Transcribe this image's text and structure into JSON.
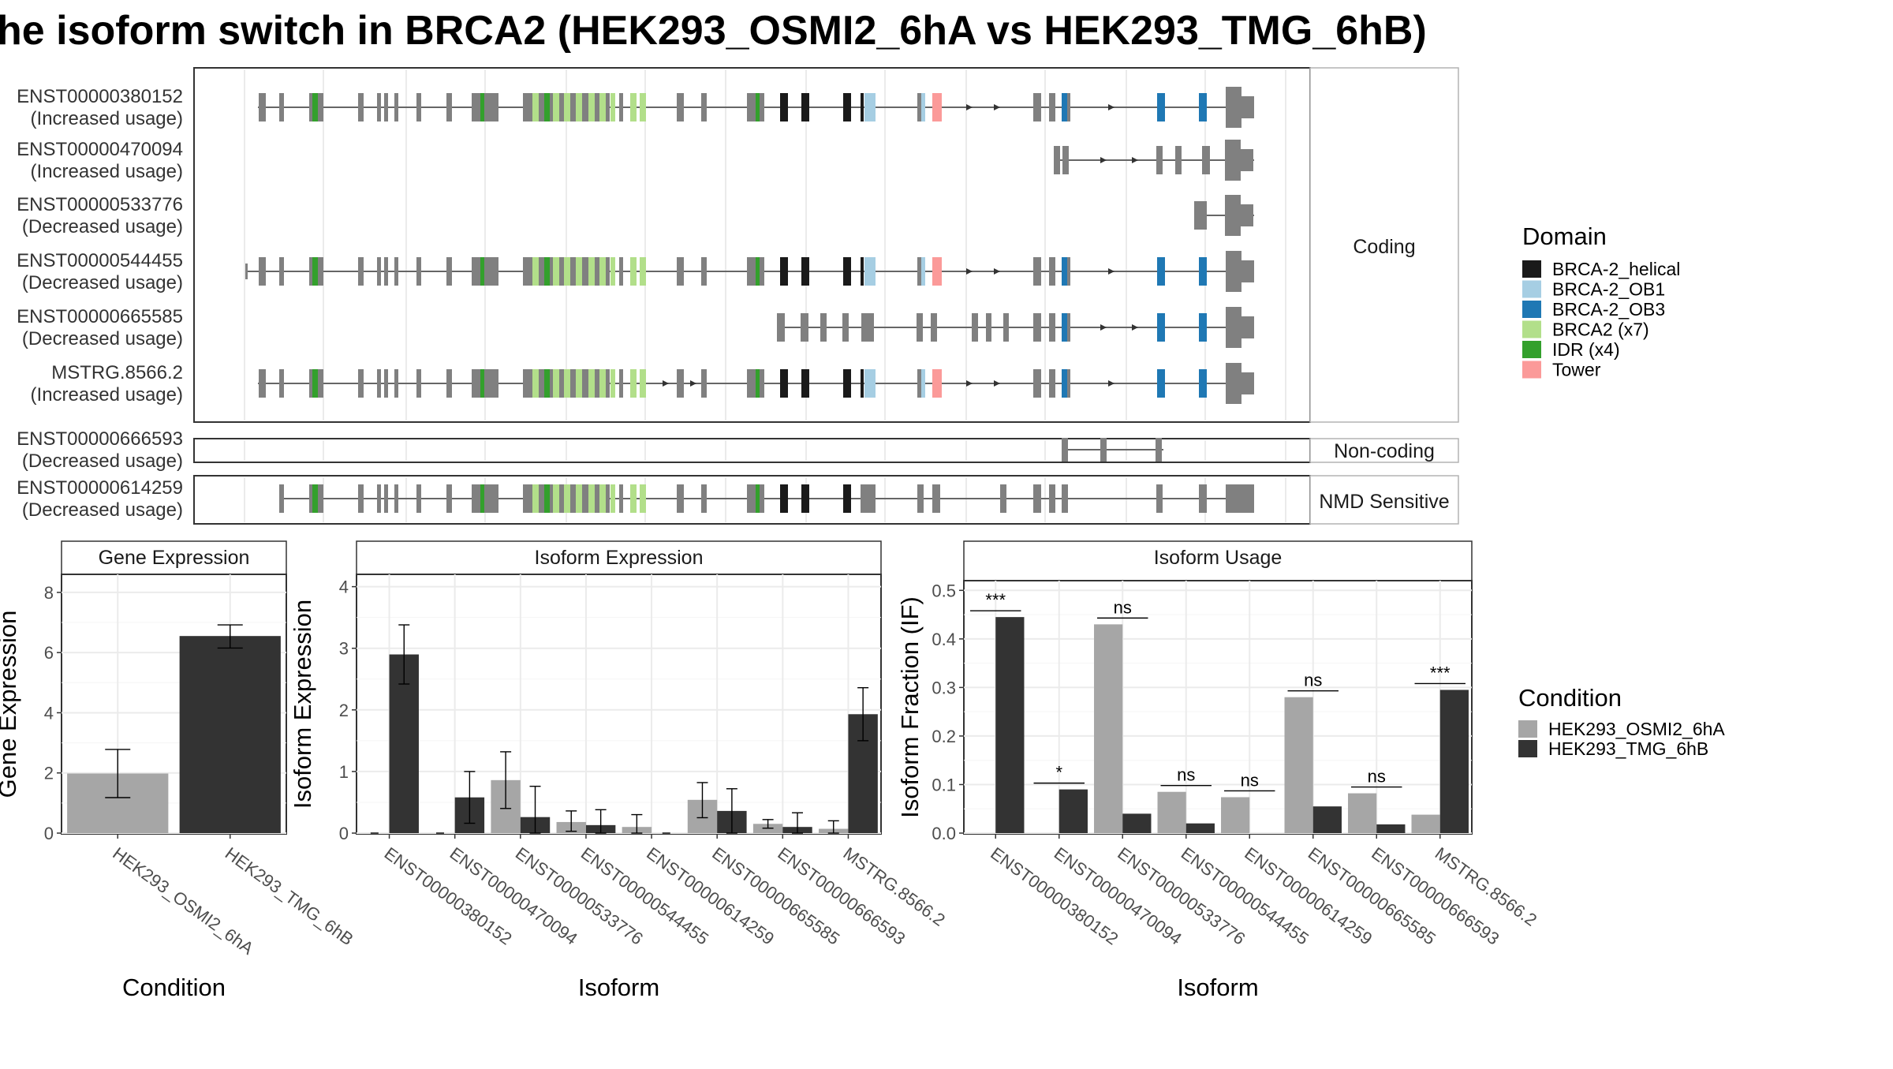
{
  "title": "he isoform switch in BRCA2 (HEK293_OSMI2_6hA vs HEK293_TMG_6hB)",
  "structure": {
    "transcripts": [
      {
        "id": "ENST00000380152",
        "usage": "(Increased usage)",
        "group": "Coding"
      },
      {
        "id": "ENST00000470094",
        "usage": "(Increased usage)",
        "group": "Coding"
      },
      {
        "id": "ENST00000533776",
        "usage": "(Decreased usage)",
        "group": "Coding"
      },
      {
        "id": "ENST00000544455",
        "usage": "(Decreased usage)",
        "group": "Coding"
      },
      {
        "id": "ENST00000665585",
        "usage": "(Decreased usage)",
        "group": "Coding"
      },
      {
        "id": "MSTRG.8566.2",
        "usage": "(Increased usage)",
        "group": "Coding"
      },
      {
        "id": "ENST00000666593",
        "usage": "(Decreased usage)",
        "group": "Non-coding"
      },
      {
        "id": "ENST00000614259",
        "usage": "(Decreased usage)",
        "group": "NMD Sensitive"
      }
    ],
    "groups": [
      "Coding",
      "Non-coding",
      "NMD Sensitive"
    ]
  },
  "domain_legend": {
    "title": "Domain",
    "items": [
      {
        "label": "BRCA-2_helical",
        "color": "#1a1a1a"
      },
      {
        "label": "BRCA-2_OB1",
        "color": "#a6cee3"
      },
      {
        "label": "BRCA-2_OB3",
        "color": "#1f78b4"
      },
      {
        "label": "BRCA2 (x7)",
        "color": "#b2df8a"
      },
      {
        "label": "IDR (x4)",
        "color": "#33a02c"
      },
      {
        "label": "Tower",
        "color": "#fb9a99"
      }
    ]
  },
  "condition_legend": {
    "title": "Condition",
    "items": [
      {
        "label": "HEK293_OSMI2_6hA",
        "color": "#a6a6a6"
      },
      {
        "label": "HEK293_TMG_6hB",
        "color": "#333333"
      }
    ]
  },
  "chart_data": [
    {
      "type": "bar",
      "title": "Gene Expression",
      "xlabel": "Condition",
      "ylabel": "Gene Expression",
      "ylim": [
        0,
        8.6
      ],
      "yticks": [
        0,
        2,
        4,
        6,
        8
      ],
      "categories": [
        "HEK293_OSMI2_6hA",
        "HEK293_TMG_6hB"
      ],
      "values": [
        1.98,
        6.55
      ],
      "errors": [
        [
          1.18,
          2.78
        ],
        [
          6.15,
          6.92
        ]
      ],
      "colors": [
        "#a6a6a6",
        "#333333"
      ]
    },
    {
      "type": "bar",
      "title": "Isoform Expression",
      "xlabel": "Isoform",
      "ylabel": "Isoform Expression",
      "ylim": [
        0,
        4.2
      ],
      "yticks": [
        0,
        1,
        2,
        3,
        4
      ],
      "categories": [
        "ENST00000380152",
        "ENST00000470094",
        "ENST00000533776",
        "ENST00000544455",
        "ENST00000614259",
        "ENST00000665585",
        "ENST00000666593",
        "MSTRG.8566.2"
      ],
      "series": [
        {
          "name": "HEK293_OSMI2_6hA",
          "values": [
            0.0,
            0.0,
            0.86,
            0.18,
            0.1,
            0.54,
            0.15,
            0.07
          ],
          "errors": [
            [
              0,
              0
            ],
            [
              0,
              0
            ],
            [
              0.4,
              1.32
            ],
            [
              0.03,
              0.36
            ],
            [
              0.0,
              0.3
            ],
            [
              0.25,
              0.82
            ],
            [
              0.08,
              0.22
            ],
            [
              0.0,
              0.2
            ]
          ]
        },
        {
          "name": "HEK293_TMG_6hB",
          "values": [
            2.9,
            0.58,
            0.26,
            0.13,
            0.0,
            0.36,
            0.1,
            1.93
          ],
          "errors": [
            [
              2.42,
              3.38
            ],
            [
              0.16,
              1.0
            ],
            [
              0.0,
              0.76
            ],
            [
              0.0,
              0.38
            ],
            [
              0,
              0
            ],
            [
              0.0,
              0.72
            ],
            [
              0.0,
              0.33
            ],
            [
              1.5,
              2.36
            ]
          ]
        }
      ]
    },
    {
      "type": "bar",
      "title": "Isoform Usage",
      "xlabel": "Isoform",
      "ylabel": "Isoform Fraction (IF)",
      "ylim": [
        0,
        0.52
      ],
      "yticks": [
        0.0,
        0.1,
        0.2,
        0.3,
        0.4,
        0.5
      ],
      "ytick_labels": [
        "0.0",
        "0.1",
        "0.2",
        "0.3",
        "0.4",
        "0.5"
      ],
      "categories": [
        "ENST00000380152",
        "ENST00000470094",
        "ENST00000533776",
        "ENST00000544455",
        "ENST00000614259",
        "ENST00000665585",
        "ENST00000666593",
        "MSTRG.8566.2"
      ],
      "series": [
        {
          "name": "HEK293_OSMI2_6hA",
          "values": [
            0.0,
            0.0,
            0.43,
            0.085,
            0.074,
            0.28,
            0.082,
            0.038
          ]
        },
        {
          "name": "HEK293_TMG_6hB",
          "values": [
            0.445,
            0.09,
            0.04,
            0.02,
            0.0,
            0.055,
            0.018,
            0.295
          ]
        }
      ],
      "significance": [
        "***",
        "*",
        "ns",
        "ns",
        "ns",
        "ns",
        "ns",
        "***"
      ]
    }
  ]
}
